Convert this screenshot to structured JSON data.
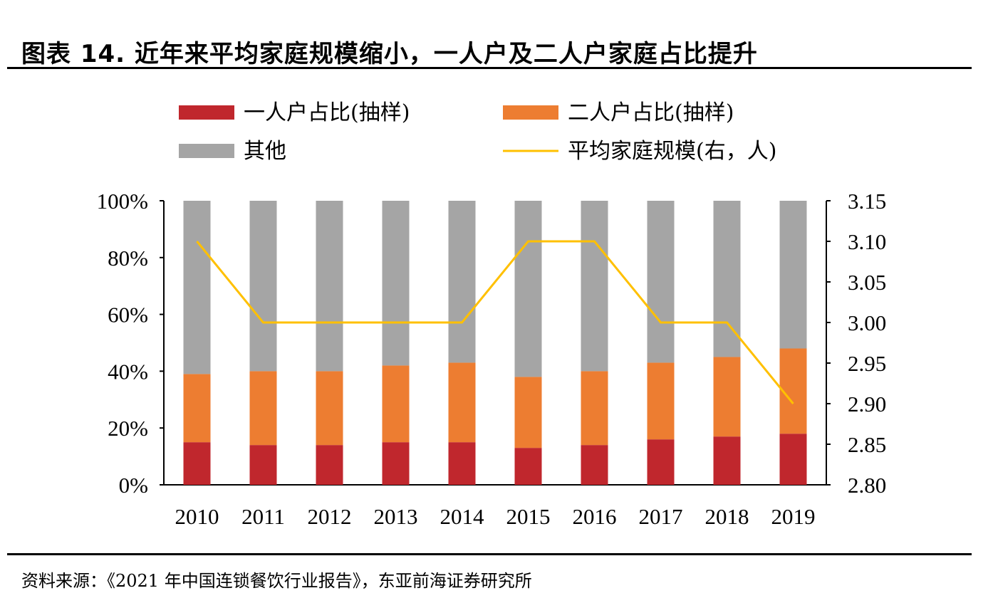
{
  "header": {
    "title": "图表 14. 近年来平均家庭规模缩小，一人户及二人户家庭占比提升"
  },
  "footer": {
    "source": "资料来源：《2021 年中国连锁餐饮行业报告》，东亚前海证券研究所"
  },
  "colors": {
    "one_person": "#c0272d",
    "two_person": "#ed7d31",
    "other": "#a5a5a5",
    "avg_size": "#ffc000"
  },
  "chart_data": {
    "type": "bar",
    "stacked": true,
    "categories": [
      "2010",
      "2011",
      "2012",
      "2013",
      "2014",
      "2015",
      "2016",
      "2017",
      "2018",
      "2019"
    ],
    "series": [
      {
        "name": "一人户占比(抽样)",
        "axis": "left",
        "values": [
          15,
          14,
          14,
          15,
          15,
          13,
          14,
          16,
          17,
          18
        ]
      },
      {
        "name": "二人户占比(抽样)",
        "axis": "left",
        "values": [
          24,
          26,
          26,
          27,
          28,
          25,
          26,
          27,
          28,
          30
        ]
      },
      {
        "name": "其他",
        "axis": "left",
        "values": [
          61,
          60,
          60,
          58,
          57,
          62,
          60,
          57,
          55,
          52
        ]
      },
      {
        "name": "平均家庭规模(右，人)",
        "type": "line",
        "axis": "right",
        "values": [
          3.1,
          3.0,
          3.0,
          3.0,
          3.0,
          3.1,
          3.1,
          3.0,
          3.0,
          2.9
        ]
      }
    ],
    "y_left": {
      "min": 0,
      "max": 100,
      "ticks": [
        "0%",
        "20%",
        "40%",
        "60%",
        "80%",
        "100%"
      ]
    },
    "y_right": {
      "min": 2.8,
      "max": 3.15,
      "ticks": [
        "2.80",
        "2.85",
        "2.90",
        "2.95",
        "3.00",
        "3.05",
        "3.10",
        "3.15"
      ]
    },
    "legend_position": "top",
    "grid": false
  }
}
